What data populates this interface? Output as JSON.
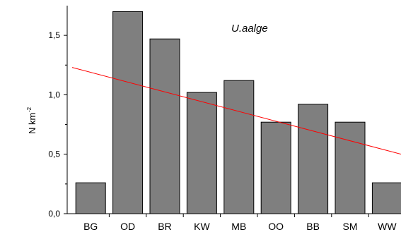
{
  "chart_data": {
    "type": "bar",
    "title": "",
    "annotation": "U.aalge",
    "xlabel": "",
    "ylabel": "N km",
    "ylabel_superscript": "-2",
    "categories": [
      "BG",
      "OD",
      "BR",
      "KW",
      "MB",
      "OO",
      "BB",
      "SM",
      "WW"
    ],
    "values": [
      0.26,
      1.7,
      1.47,
      1.02,
      1.12,
      0.77,
      0.92,
      0.77,
      0.26
    ],
    "ylim": [
      0,
      1.75
    ],
    "yticks": [
      0.0,
      0.5,
      1.0,
      1.5
    ],
    "ytick_labels": [
      "0,0",
      "0,5",
      "1,0",
      "1,5"
    ],
    "trendline": {
      "start": [
        0.5,
        1.23
      ],
      "end": [
        9.5,
        0.49
      ],
      "color": "#ff0000"
    },
    "bar_color": "#7f7f7f",
    "bar_edge_color": "#000000",
    "grid": false,
    "legend": "none"
  }
}
